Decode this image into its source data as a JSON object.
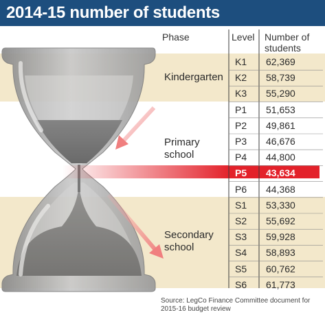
{
  "title": "2014-15 number of students",
  "headers": {
    "phase": "Phase",
    "level": "Level",
    "number": "Number of students"
  },
  "colors": {
    "title_bg": "#1d4e7e",
    "band": "#f3e8cb",
    "highlight": "#e3212a",
    "text": "#2a2a2a"
  },
  "phases": [
    "Kindergarten",
    "Primary school",
    "Secondary school"
  ],
  "highlight_level": "P5",
  "source": "Source: LegCo Finance Committee document for 2015-16 budget review",
  "chart_data": {
    "type": "table",
    "title": "2014-15 number of students",
    "columns": [
      "Phase",
      "Level",
      "Number of students"
    ],
    "rows": [
      {
        "phase": "Kindergarten",
        "level": "K1",
        "students": 62369,
        "display": "62,369"
      },
      {
        "phase": "Kindergarten",
        "level": "K2",
        "students": 58739,
        "display": "58,739"
      },
      {
        "phase": "Kindergarten",
        "level": "K3",
        "students": 55290,
        "display": "55,290"
      },
      {
        "phase": "Primary school",
        "level": "P1",
        "students": 51653,
        "display": "51,653"
      },
      {
        "phase": "Primary school",
        "level": "P2",
        "students": 49861,
        "display": "49,861"
      },
      {
        "phase": "Primary school",
        "level": "P3",
        "students": 46676,
        "display": "46,676"
      },
      {
        "phase": "Primary school",
        "level": "P4",
        "students": 44800,
        "display": "44,800"
      },
      {
        "phase": "Primary school",
        "level": "P5",
        "students": 43634,
        "display": "43,634"
      },
      {
        "phase": "Primary school",
        "level": "P6",
        "students": 44368,
        "display": "44,368"
      },
      {
        "phase": "Secondary school",
        "level": "S1",
        "students": 53330,
        "display": "53,330"
      },
      {
        "phase": "Secondary school",
        "level": "S2",
        "students": 55692,
        "display": "55,692"
      },
      {
        "phase": "Secondary school",
        "level": "S3",
        "students": 59928,
        "display": "59,928"
      },
      {
        "phase": "Secondary school",
        "level": "S4",
        "students": 58893,
        "display": "58,893"
      },
      {
        "phase": "Secondary school",
        "level": "S5",
        "students": 60762,
        "display": "60,762"
      },
      {
        "phase": "Secondary school",
        "level": "S6",
        "students": 61773,
        "display": "61,773"
      }
    ]
  }
}
